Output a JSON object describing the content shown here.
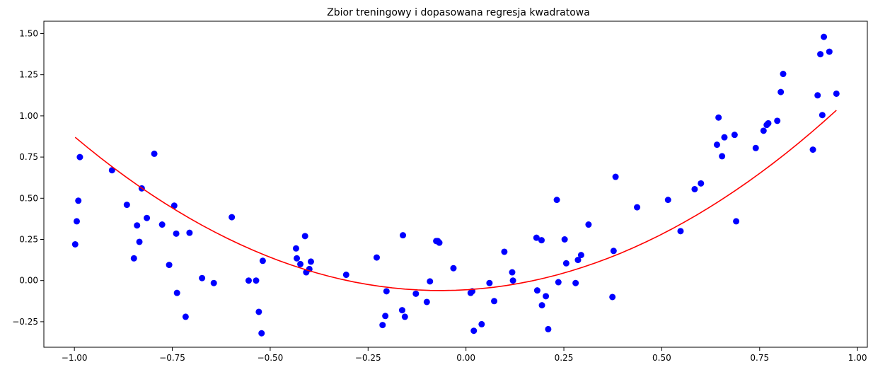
{
  "chart_data": {
    "type": "scatter",
    "title": "Zbior treningowy i dopasowana regresja kwadratowa",
    "xlabel": "",
    "ylabel": "",
    "xlim": [
      -1.078,
      1.025
    ],
    "ylim": [
      -0.405,
      1.575
    ],
    "xticks": [
      -1.0,
      -0.75,
      -0.5,
      -0.25,
      0.0,
      0.25,
      0.5,
      0.75,
      1.0
    ],
    "xtick_labels": [
      "−1.00",
      "−0.75",
      "−0.50",
      "−0.25",
      "0.00",
      "0.25",
      "0.50",
      "0.75",
      "1.00"
    ],
    "yticks": [
      -0.25,
      0.0,
      0.25,
      0.5,
      0.75,
      1.0,
      1.25,
      1.5
    ],
    "ytick_labels": [
      "−0.25",
      "0.00",
      "0.25",
      "0.50",
      "0.75",
      "1.00",
      "1.25",
      "1.50"
    ],
    "grid": false,
    "legend": "none",
    "colors": {
      "points": "#0000ff",
      "fit_line": "#ff0000"
    },
    "series": [
      {
        "kind": "scatter",
        "points": [
          [
            -0.998,
            0.22
          ],
          [
            -0.994,
            0.36
          ],
          [
            -0.99,
            0.485
          ],
          [
            -0.986,
            0.75
          ],
          [
            -0.904,
            0.67
          ],
          [
            -0.866,
            0.46
          ],
          [
            -0.848,
            0.135
          ],
          [
            -0.84,
            0.335
          ],
          [
            -0.834,
            0.235
          ],
          [
            -0.828,
            0.56
          ],
          [
            -0.815,
            0.38
          ],
          [
            -0.796,
            0.77
          ],
          [
            -0.776,
            0.34
          ],
          [
            -0.758,
            0.095
          ],
          [
            -0.745,
            0.455
          ],
          [
            -0.74,
            0.285
          ],
          [
            -0.738,
            -0.075
          ],
          [
            -0.716,
            -0.22
          ],
          [
            -0.706,
            0.29
          ],
          [
            -0.674,
            0.015
          ],
          [
            -0.644,
            -0.015
          ],
          [
            -0.598,
            0.385
          ],
          [
            -0.555,
            0.0
          ],
          [
            -0.536,
            0.0
          ],
          [
            -0.529,
            -0.19
          ],
          [
            -0.522,
            -0.32
          ],
          [
            -0.519,
            0.12
          ],
          [
            -0.434,
            0.195
          ],
          [
            -0.432,
            0.135
          ],
          [
            -0.423,
            0.1
          ],
          [
            -0.411,
            0.27
          ],
          [
            -0.408,
            0.05
          ],
          [
            -0.4,
            0.07
          ],
          [
            -0.396,
            0.115
          ],
          [
            -0.306,
            0.035
          ],
          [
            -0.228,
            0.14
          ],
          [
            -0.213,
            -0.27
          ],
          [
            -0.206,
            -0.215
          ],
          [
            -0.203,
            -0.065
          ],
          [
            -0.163,
            -0.18
          ],
          [
            -0.161,
            0.275
          ],
          [
            -0.156,
            -0.22
          ],
          [
            -0.128,
            -0.08
          ],
          [
            -0.1,
            -0.13
          ],
          [
            -0.092,
            -0.005
          ],
          [
            -0.076,
            0.24
          ],
          [
            -0.072,
            0.24
          ],
          [
            -0.068,
            0.23
          ],
          [
            -0.032,
            0.075
          ],
          [
            0.012,
            -0.075
          ],
          [
            0.016,
            -0.065
          ],
          [
            0.02,
            -0.305
          ],
          [
            0.04,
            -0.265
          ],
          [
            0.06,
            -0.015
          ],
          [
            0.072,
            -0.125
          ],
          [
            0.098,
            0.175
          ],
          [
            0.118,
            0.05
          ],
          [
            0.12,
            0.0
          ],
          [
            0.18,
            0.26
          ],
          [
            0.182,
            -0.06
          ],
          [
            0.193,
            0.245
          ],
          [
            0.194,
            -0.15
          ],
          [
            0.204,
            -0.095
          ],
          [
            0.21,
            -0.295
          ],
          [
            0.232,
            0.49
          ],
          [
            0.236,
            -0.01
          ],
          [
            0.252,
            0.25
          ],
          [
            0.256,
            0.105
          ],
          [
            0.28,
            -0.015
          ],
          [
            0.286,
            0.125
          ],
          [
            0.294,
            0.155
          ],
          [
            0.313,
            0.34
          ],
          [
            0.374,
            -0.1
          ],
          [
            0.377,
            0.18
          ],
          [
            0.382,
            0.63
          ],
          [
            0.437,
            0.445
          ],
          [
            0.516,
            0.49
          ],
          [
            0.548,
            0.3
          ],
          [
            0.584,
            0.555
          ],
          [
            0.6,
            0.59
          ],
          [
            0.641,
            0.825
          ],
          [
            0.645,
            0.99
          ],
          [
            0.654,
            0.755
          ],
          [
            0.66,
            0.87
          ],
          [
            0.686,
            0.885
          ],
          [
            0.69,
            0.36
          ],
          [
            0.74,
            0.805
          ],
          [
            0.76,
            0.91
          ],
          [
            0.768,
            0.945
          ],
          [
            0.772,
            0.955
          ],
          [
            0.795,
            0.97
          ],
          [
            0.804,
            1.145
          ],
          [
            0.81,
            1.255
          ],
          [
            0.886,
            0.795
          ],
          [
            0.898,
            1.125
          ],
          [
            0.905,
            1.375
          ],
          [
            0.91,
            1.005
          ],
          [
            0.914,
            1.48
          ],
          [
            0.928,
            1.39
          ],
          [
            0.946,
            1.135
          ]
        ]
      },
      {
        "kind": "line",
        "coefficients": {
          "a": 1.07,
          "b": 0.14,
          "c": -0.056
        },
        "x_range": [
          -0.998,
          0.946
        ]
      }
    ]
  }
}
